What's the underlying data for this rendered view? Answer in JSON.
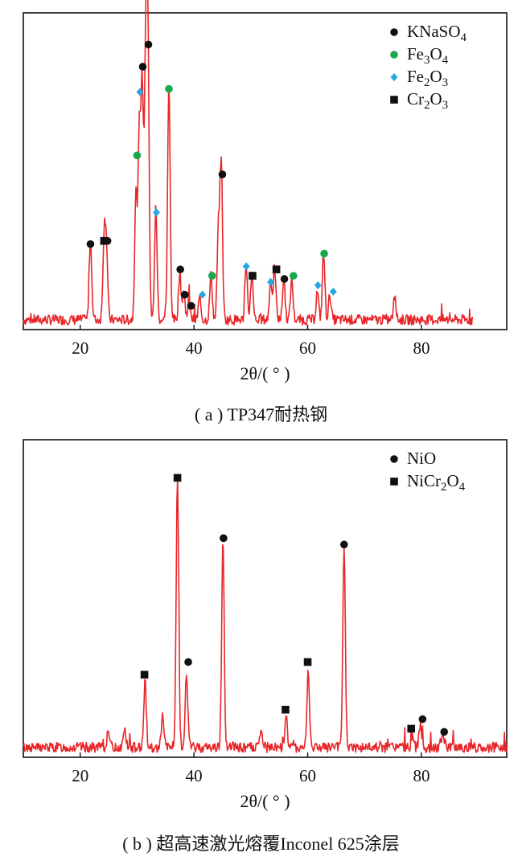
{
  "colors": {
    "trace": "#e8262a",
    "KNaSO4": "#111111",
    "Fe3O4": "#1aa84f",
    "Fe2O3": "#29a8e0",
    "Cr2O3": "#111111",
    "NiO": "#111111",
    "NiCr2O4": "#111111"
  },
  "chart_data": [
    {
      "type": "line",
      "caption": "( a ) TP347耐热钢",
      "xlabel": "2θ/( ° )",
      "ylabel": "",
      "xlim": [
        10,
        95
      ],
      "ylim": [
        0,
        100
      ],
      "x_ticks": [
        20,
        40,
        60,
        80
      ],
      "grid": false,
      "legend_position": "top-right",
      "legend": [
        {
          "base": "KNaSO",
          "sub": "4",
          "tail": "",
          "sub2": "",
          "marker": "circle",
          "phase": "KNaSO4"
        },
        {
          "base": "Fe",
          "sub": "3",
          "tail": "O",
          "sub2": "4",
          "marker": "circle",
          "phase": "Fe3O4"
        },
        {
          "base": "Fe",
          "sub": "2",
          "tail": "O",
          "sub2": "3",
          "marker": "diamond",
          "phase": "Fe2O3"
        },
        {
          "base": "Cr",
          "sub": "2",
          "tail": "O",
          "sub2": "3",
          "marker": "square",
          "phase": "Cr2O3"
        }
      ],
      "peaks": [
        [
          21.8,
          26
        ],
        [
          24.2,
          25
        ],
        [
          24.6,
          23
        ],
        [
          29.8,
          40
        ],
        [
          30.4,
          58
        ],
        [
          30.9,
          72
        ],
        [
          31.5,
          78
        ],
        [
          31.9,
          88
        ],
        [
          33.3,
          35
        ],
        [
          35.6,
          75
        ],
        [
          37.5,
          15
        ],
        [
          38.2,
          9
        ],
        [
          39.1,
          6
        ],
        [
          41.0,
          7
        ],
        [
          43.0,
          14
        ],
        [
          44.3,
          28
        ],
        [
          44.8,
          50
        ],
        [
          49.2,
          17
        ],
        [
          50.2,
          15
        ],
        [
          53.5,
          13
        ],
        [
          54.2,
          16
        ],
        [
          55.8,
          13
        ],
        [
          57.2,
          13
        ],
        [
          61.7,
          9
        ],
        [
          62.8,
          21
        ],
        [
          63.9,
          8
        ],
        [
          75.3,
          7
        ]
      ],
      "markers": [
        {
          "phase": "KNaSO4",
          "x": 21.8,
          "y": 27
        },
        {
          "phase": "Cr2O3",
          "x": 24.2,
          "y": 28
        },
        {
          "phase": "KNaSO4",
          "x": 24.8,
          "y": 28
        },
        {
          "phase": "Fe3O4",
          "x": 30.0,
          "y": 55
        },
        {
          "phase": "Fe2O3",
          "x": 30.5,
          "y": 75
        },
        {
          "phase": "KNaSO4",
          "x": 31.0,
          "y": 83
        },
        {
          "phase": "KNaSO4",
          "x": 32.0,
          "y": 90
        },
        {
          "phase": "Fe2O3",
          "x": 33.4,
          "y": 37
        },
        {
          "phase": "Fe3O4",
          "x": 35.6,
          "y": 76
        },
        {
          "phase": "KNaSO4",
          "x": 37.6,
          "y": 19
        },
        {
          "phase": "KNaSO4",
          "x": 38.4,
          "y": 11
        },
        {
          "phase": "KNaSO4",
          "x": 39.5,
          "y": 7.5
        },
        {
          "phase": "Fe2O3",
          "x": 41.5,
          "y": 11
        },
        {
          "phase": "Fe3O4",
          "x": 43.2,
          "y": 17
        },
        {
          "phase": "KNaSO4",
          "x": 45.0,
          "y": 49
        },
        {
          "phase": "Fe2O3",
          "x": 49.2,
          "y": 20
        },
        {
          "phase": "Cr2O3",
          "x": 50.3,
          "y": 17
        },
        {
          "phase": "Fe2O3",
          "x": 53.5,
          "y": 15
        },
        {
          "phase": "Cr2O3",
          "x": 54.5,
          "y": 19
        },
        {
          "phase": "KNaSO4",
          "x": 55.9,
          "y": 16
        },
        {
          "phase": "Fe3O4",
          "x": 57.5,
          "y": 17
        },
        {
          "phase": "Fe2O3",
          "x": 61.8,
          "y": 14
        },
        {
          "phase": "Fe3O4",
          "x": 62.9,
          "y": 24
        },
        {
          "phase": "Fe2O3",
          "x": 64.5,
          "y": 12
        }
      ]
    },
    {
      "type": "line",
      "caption": "( b ) 超高速激光熔覆Inconel 625涂层",
      "xlabel": "2θ/( ° )",
      "ylabel": "",
      "xlim": [
        10,
        95
      ],
      "ylim": [
        0,
        100
      ],
      "x_ticks": [
        20,
        40,
        60,
        80
      ],
      "grid": false,
      "legend_position": "top-right",
      "legend": [
        {
          "base": "NiO",
          "sub": "",
          "tail": "",
          "sub2": "",
          "marker": "circle",
          "phase": "NiO"
        },
        {
          "base": "NiCr",
          "sub": "2",
          "tail": "O",
          "sub2": "4",
          "marker": "square",
          "phase": "NiCr2O4"
        }
      ],
      "peaks": [
        [
          24.9,
          5
        ],
        [
          27.8,
          6
        ],
        [
          31.4,
          21
        ],
        [
          34.5,
          10
        ],
        [
          37.1,
          84
        ],
        [
          38.7,
          24
        ],
        [
          45.1,
          65
        ],
        [
          51.8,
          5
        ],
        [
          56.2,
          10
        ],
        [
          60.1,
          24
        ],
        [
          66.4,
          63
        ],
        [
          78.4,
          4
        ],
        [
          79.8,
          7
        ],
        [
          83.8,
          5
        ]
      ],
      "markers": [
        {
          "phase": "NiCr2O4",
          "x": 31.3,
          "y": 26
        },
        {
          "phase": "NiCr2O4",
          "x": 37.1,
          "y": 88
        },
        {
          "phase": "NiO",
          "x": 39.0,
          "y": 30
        },
        {
          "phase": "NiO",
          "x": 45.2,
          "y": 69
        },
        {
          "phase": "NiCr2O4",
          "x": 56.1,
          "y": 15
        },
        {
          "phase": "NiCr2O4",
          "x": 60.0,
          "y": 30
        },
        {
          "phase": "NiO",
          "x": 66.4,
          "y": 67
        },
        {
          "phase": "NiCr2O4",
          "x": 78.2,
          "y": 9
        },
        {
          "phase": "NiO",
          "x": 80.2,
          "y": 12
        },
        {
          "phase": "NiO",
          "x": 84.0,
          "y": 8
        }
      ]
    }
  ]
}
